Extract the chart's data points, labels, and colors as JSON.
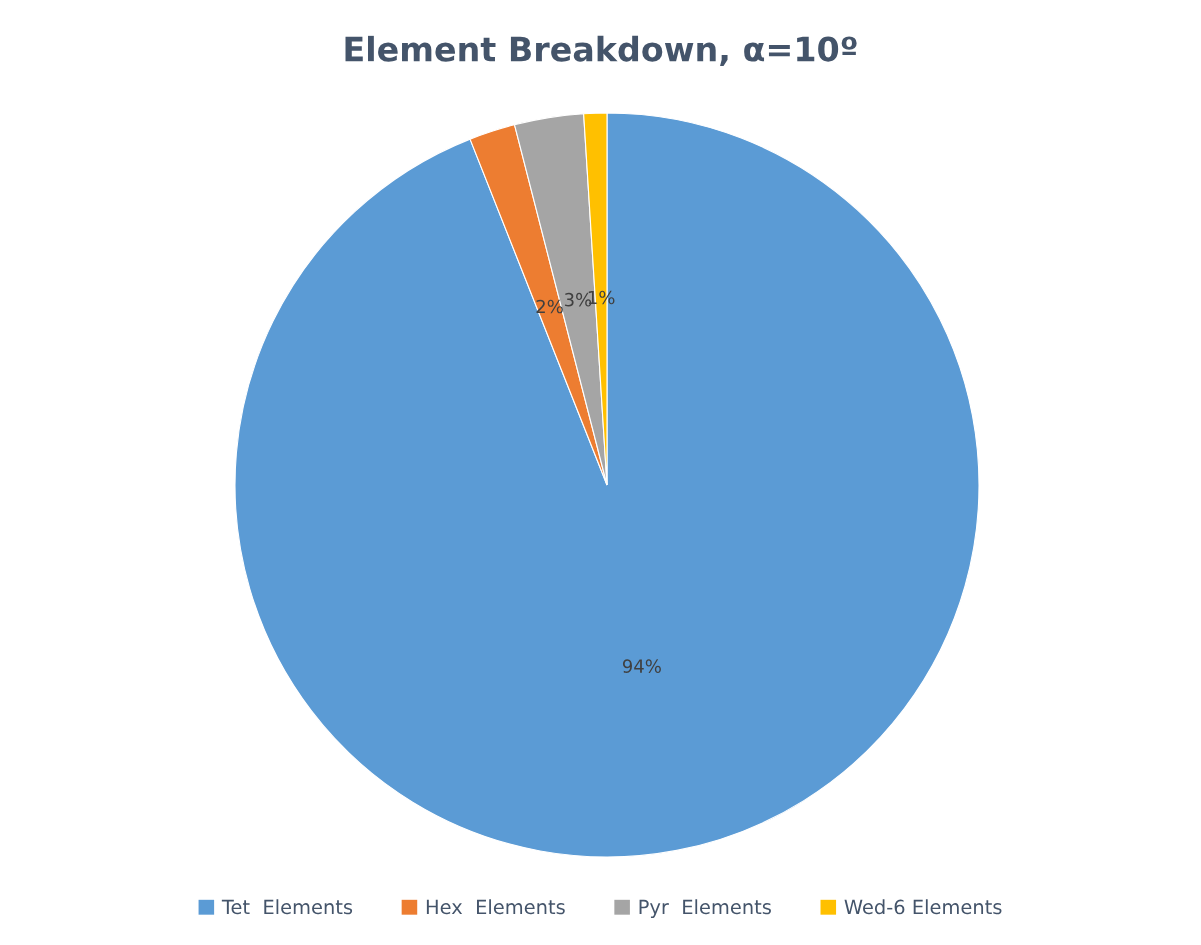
{
  "chart_data": {
    "type": "pie",
    "title": "Element Breakdown, α=10º",
    "categories": [
      "Tet  Elements",
      "Hex  Elements",
      "Pyr  Elements",
      "Wed-6 Elements"
    ],
    "values": [
      94,
      2,
      3,
      1
    ],
    "colors": [
      "#5b9bd5",
      "#ed7d31",
      "#a5a5a5",
      "#ffc000"
    ],
    "value_labels": [
      "94%",
      "2%",
      "3%",
      "1%"
    ],
    "legend": "bottom"
  }
}
